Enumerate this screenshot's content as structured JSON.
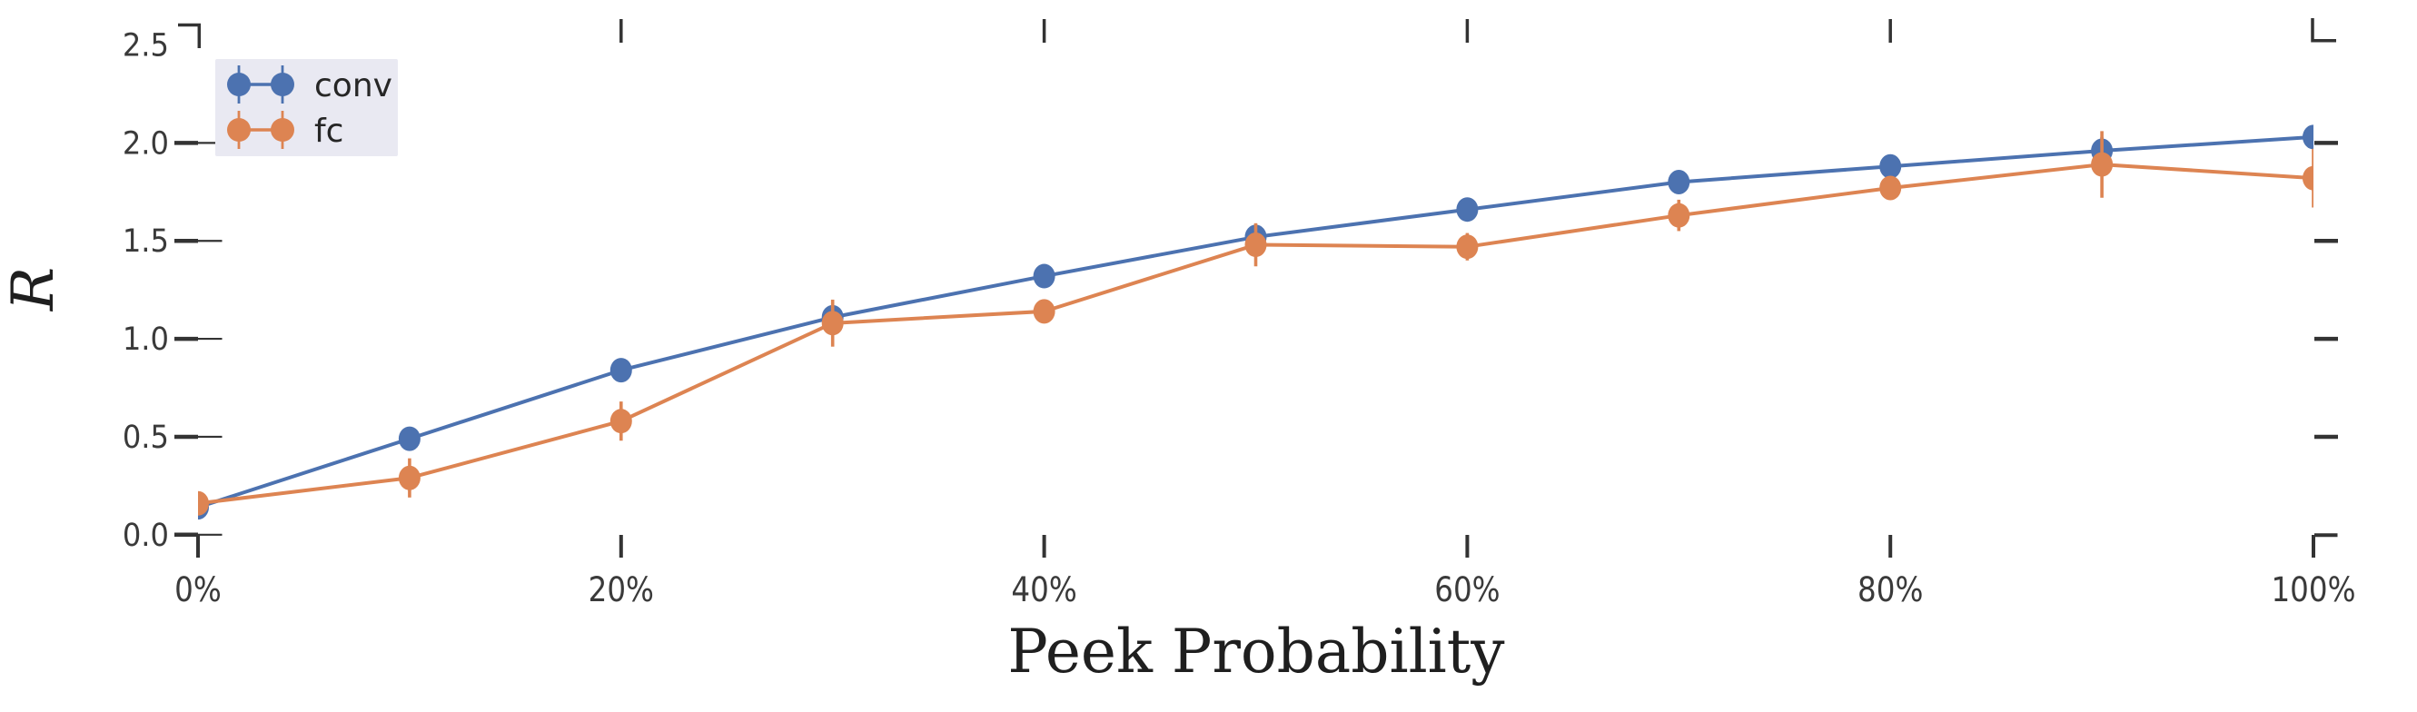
{
  "figure": {
    "kind": "errorbar-line-plot",
    "background": "#ffffff"
  },
  "chart_data": {
    "type": "line",
    "title": "",
    "xlabel": "Peek Probability",
    "ylabel": "R",
    "x": [
      0,
      10,
      20,
      30,
      40,
      50,
      60,
      70,
      80,
      90,
      100
    ],
    "xlim": [
      0,
      100
    ],
    "ylim": [
      0,
      2.5
    ],
    "xticks": [
      0,
      20,
      40,
      60,
      80,
      100
    ],
    "xtick_labels": [
      "0%",
      "20%",
      "40%",
      "60%",
      "80%",
      "100%"
    ],
    "yticks": [
      0,
      0.5,
      1,
      1.5,
      2,
      2.5
    ],
    "ytick_labels": [
      "0.0",
      "0.5",
      "1.0",
      "1.5",
      "2.0",
      "2.5"
    ],
    "grid": false,
    "error_caps": false,
    "marker": "o",
    "legend": {
      "position": "upper left",
      "entries": [
        "conv",
        "fc"
      ]
    },
    "series": [
      {
        "name": "conv",
        "color": "#4C72B0",
        "values": [
          0.14,
          0.49,
          0.84,
          1.11,
          1.32,
          1.52,
          1.66,
          1.8,
          1.88,
          1.96,
          2.03
        ],
        "errors": [
          0.03,
          0.04,
          0.03,
          0.03,
          0.03,
          0.05,
          0.03,
          0.03,
          0.04,
          0.07,
          0.02
        ]
      },
      {
        "name": "fc",
        "color": "#DD8452",
        "values": [
          0.16,
          0.29,
          0.58,
          1.08,
          1.14,
          1.48,
          1.47,
          1.63,
          1.77,
          1.89,
          1.82
        ],
        "errors": [
          0.05,
          0.1,
          0.1,
          0.12,
          0.05,
          0.11,
          0.07,
          0.08,
          0.06,
          0.17,
          0.15
        ]
      }
    ]
  },
  "colors": {
    "background": "#ffffff",
    "tick": "#333333",
    "tick_label": "#3a3a3a",
    "axis_label": "#1f1f1f",
    "legend_bg": "#E9E9F2",
    "legend_text": "#262626"
  }
}
